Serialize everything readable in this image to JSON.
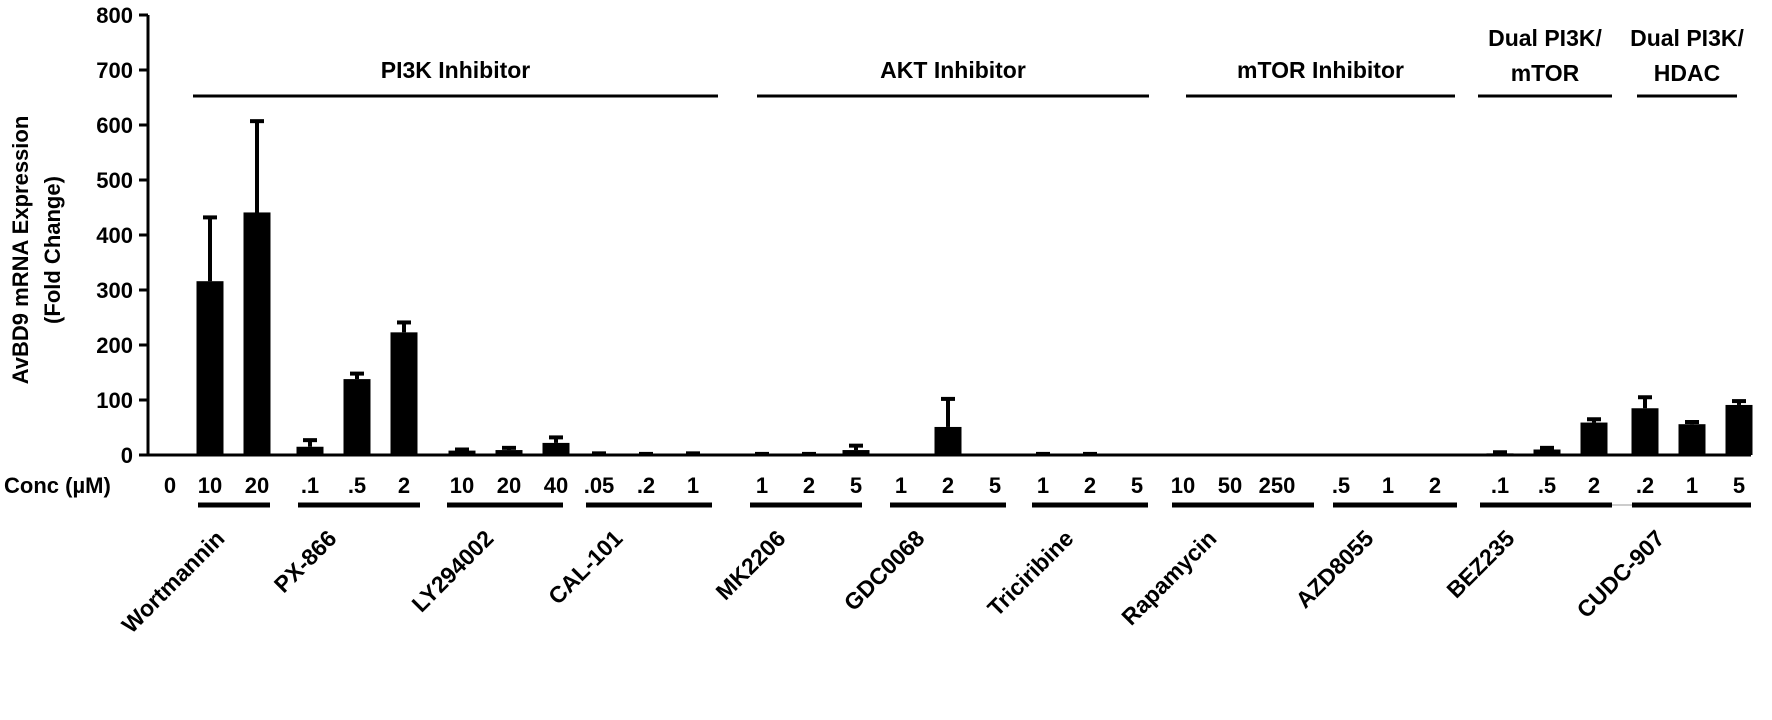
{
  "chart_data": {
    "type": "bar",
    "ylabel": [
      "AvBD9 mRNA Expression",
      "(Fold Change)"
    ],
    "ylim": [
      0,
      800
    ],
    "yticks": [
      "0",
      "100",
      "200",
      "300",
      "400",
      "500",
      "600",
      "700",
      "800"
    ],
    "xlabel": "Conc (µM)",
    "control": {
      "label": "0",
      "value": 0
    },
    "groups": [
      {
        "label": [
          "PI3K Inhibitor"
        ],
        "drugs": [
          0,
          1,
          2,
          3
        ]
      },
      {
        "label": [
          "AKT Inhibitor"
        ],
        "drugs": [
          4,
          5,
          6
        ]
      },
      {
        "label": [
          "mTOR Inhibitor"
        ],
        "drugs": [
          7,
          8
        ]
      },
      {
        "label": [
          "Dual PI3K/",
          "mTOR"
        ],
        "drugs": [
          9
        ]
      },
      {
        "label": [
          "Dual PI3K/",
          "HDAC"
        ],
        "drugs": [
          10
        ]
      }
    ],
    "drugs": [
      {
        "name": "Wortmannin",
        "concs": [
          "10",
          "20"
        ],
        "values": [
          316,
          441
        ],
        "errors": [
          116,
          166
        ]
      },
      {
        "name": "PX-866",
        "concs": [
          ".1",
          ".5",
          "2"
        ],
        "values": [
          15,
          138,
          223
        ],
        "errors": [
          12,
          10,
          18
        ]
      },
      {
        "name": "LY294002",
        "concs": [
          "10",
          "20",
          "40"
        ],
        "values": [
          8,
          9,
          22
        ],
        "errors": [
          2,
          4,
          10
        ]
      },
      {
        "name": "CAL-101",
        "concs": [
          ".05",
          ".2",
          "1"
        ],
        "values": [
          2,
          1,
          2
        ],
        "errors": [
          1,
          1,
          1
        ]
      },
      {
        "name": "MK2206",
        "concs": [
          "1",
          "2",
          "5"
        ],
        "values": [
          1,
          1,
          9
        ],
        "errors": [
          1,
          1,
          8
        ]
      },
      {
        "name": "GDC0068",
        "concs": [
          "1",
          "2",
          "5"
        ],
        "values": [
          1,
          51,
          0
        ],
        "errors": [
          0,
          51,
          0
        ]
      },
      {
        "name": "Triciribine",
        "concs": [
          "1",
          "2",
          "5"
        ],
        "values": [
          1,
          1,
          0
        ],
        "errors": [
          1,
          1,
          0
        ]
      },
      {
        "name": "Rapamycin",
        "concs": [
          "10",
          "50",
          "250"
        ],
        "values": [
          0,
          0,
          0
        ],
        "errors": [
          0,
          0,
          0
        ]
      },
      {
        "name": "AZD8055",
        "concs": [
          ".5",
          "1",
          "2"
        ],
        "values": [
          0,
          0,
          0
        ],
        "errors": [
          0,
          0,
          0
        ]
      },
      {
        "name": "BEZ235",
        "concs": [
          ".1",
          ".5",
          "2"
        ],
        "values": [
          3,
          10,
          59
        ],
        "errors": [
          2,
          3,
          6
        ]
      },
      {
        "name": "CUDC-907",
        "concs": [
          ".2",
          "1",
          "5"
        ],
        "values": [
          85,
          56,
          91
        ],
        "errors": [
          20,
          4,
          7
        ]
      }
    ]
  }
}
